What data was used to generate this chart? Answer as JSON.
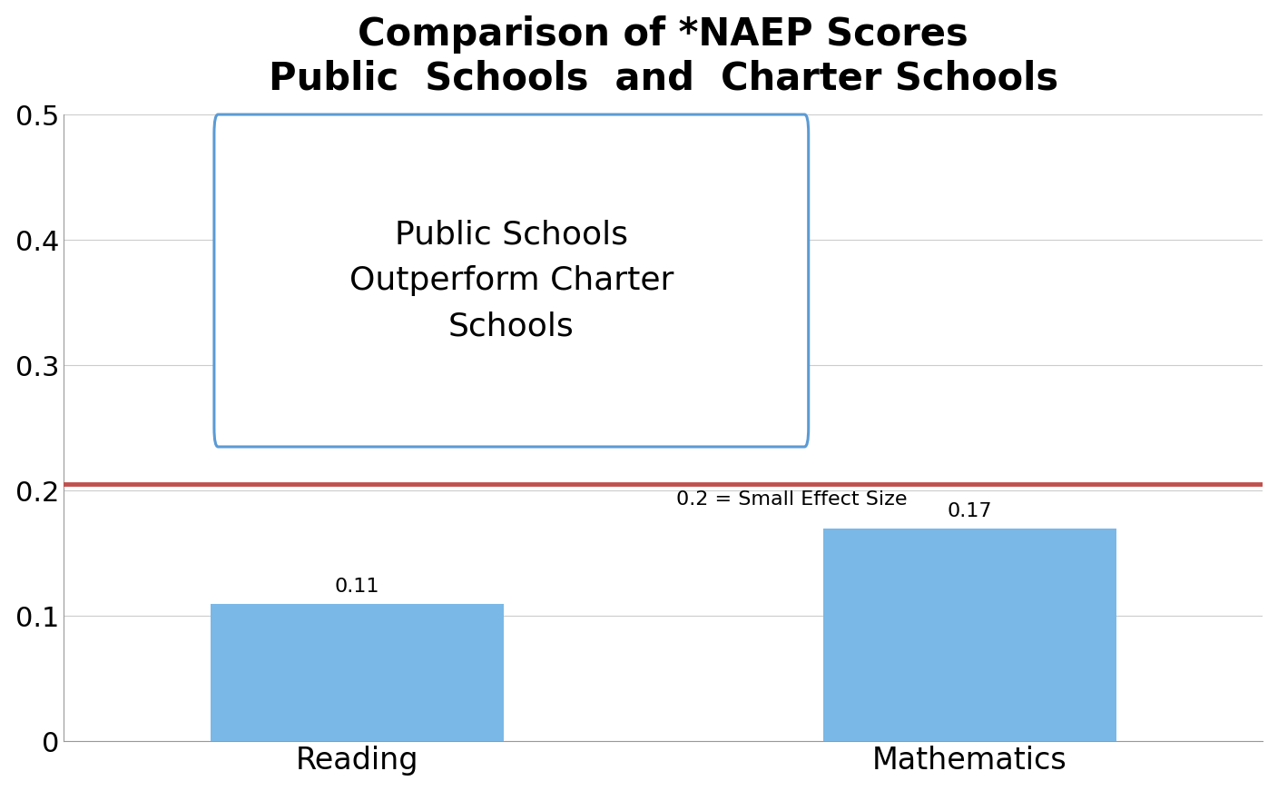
{
  "title_line1": "Comparison of *NAEP Scores",
  "title_line2": "Public  Schools  and  Charter Schools",
  "categories": [
    "Reading",
    "Mathematics"
  ],
  "values": [
    0.11,
    0.17
  ],
  "bar_color_top": "#7ab8e8",
  "bar_color_bot": "#5a9fd4",
  "ylim": [
    0,
    0.5
  ],
  "yticks": [
    0,
    0.1,
    0.2,
    0.3,
    0.4,
    0.5
  ],
  "hline_value": 0.205,
  "hline_color": "#c0504d",
  "hline_label": "0.2 = Small Effect Size",
  "annotation_text": "Public Schools\nOutperform Charter\nSchools",
  "annotation_box_color": "#5b9bd5",
  "background_color": "#ffffff",
  "title_fontsize": 30,
  "tick_fontsize": 22,
  "label_fontsize": 24,
  "bar_label_fontsize": 16,
  "annotation_fontsize": 26
}
